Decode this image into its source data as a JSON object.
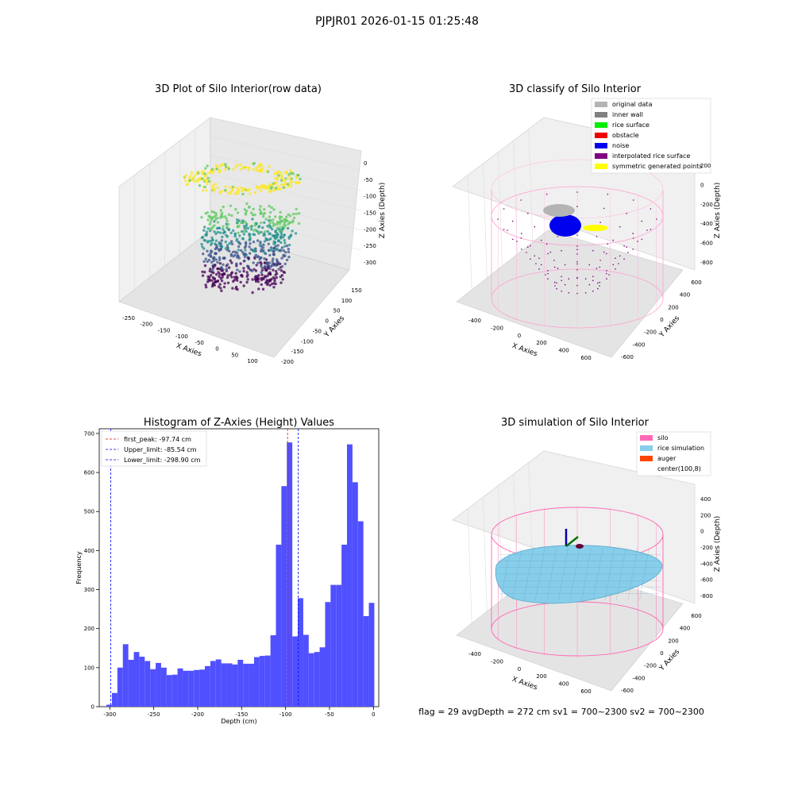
{
  "suptitle": "PJPJR01 2026-01-15 01:25:48",
  "panel_raw": {
    "title": "3D Plot of Silo Interior(row data)",
    "xlabel": "X Axies",
    "ylabel": "Y Axies",
    "zlabel": "Z Axies (Depth)",
    "xticks": [
      "-250",
      "-200",
      "-150",
      "-100",
      "-50",
      "0",
      "50",
      "100"
    ],
    "yticks": [
      "150",
      "100",
      "50",
      "0",
      "-50",
      "-100",
      "-150",
      "-200"
    ],
    "zticks": [
      "0",
      "-50",
      "-100",
      "-150",
      "-200",
      "-250",
      "-300"
    ],
    "colormap": [
      "#440154",
      "#3b528b",
      "#21918c",
      "#5ec962",
      "#fde725"
    ]
  },
  "panel_classify": {
    "title": "3D classify of Silo Interior",
    "xlabel": "X Axies",
    "ylabel": "Y Axies",
    "zlabel": "Z Axies (Depth)",
    "xticks": [
      "-400",
      "-200",
      "0",
      "200",
      "400",
      "600"
    ],
    "yticks": [
      "600",
      "400",
      "200",
      "0",
      "-200",
      "-400",
      "-600"
    ],
    "zticks": [
      "200",
      "0",
      "-200",
      "-400",
      "-600",
      "-800"
    ],
    "legend": [
      {
        "label": "original data",
        "color": "#b4b4b4"
      },
      {
        "label": "inner wall",
        "color": "#808080"
      },
      {
        "label": "rice surface",
        "color": "#00ee00"
      },
      {
        "label": "obstacle",
        "color": "#ee0000"
      },
      {
        "label": "noise",
        "color": "#0000ee"
      },
      {
        "label": "interpolated rice surface",
        "color": "#800080"
      },
      {
        "label": "symmetric generated points",
        "color": "#ffff00"
      }
    ]
  },
  "panel_sim": {
    "title": "3D simulation of Silo Interior",
    "xlabel": "X Axies",
    "ylabel": "Y Axies",
    "zlabel": "Z Axies (Depth)",
    "xticks": [
      "-400",
      "-200",
      "0",
      "200",
      "400",
      "600"
    ],
    "yticks": [
      "600",
      "400",
      "200",
      "0",
      "-200",
      "-400",
      "-600"
    ],
    "zticks": [
      "400",
      "200",
      "0",
      "-200",
      "-400",
      "-600",
      "-800"
    ],
    "legend": [
      {
        "label": "silo",
        "color": "#ff69b4"
      },
      {
        "label": "rice simulation",
        "color": "#87ceeb"
      },
      {
        "label": "auger",
        "color": "#ff4500"
      },
      {
        "label": "center(100,8)",
        "color": "#ffffff"
      }
    ],
    "status": "flag = 29  avgDepth = 272 cm  sv1 = 700~2300  sv2 = 700~2300"
  },
  "chart_data": {
    "type": "bar",
    "title": "Histogram of Z-Axies (Height) Values",
    "xlabel": "Depth (cm)",
    "ylabel": "Frequency",
    "xlim": [
      -312,
      6
    ],
    "ylim": [
      0,
      712
    ],
    "bar_color": "#5050ff",
    "xticks": [
      -300,
      -250,
      -200,
      -150,
      -100,
      -50,
      0
    ],
    "yticks": [
      0,
      100,
      200,
      300,
      400,
      500,
      600,
      700
    ],
    "bin_width": 6.22,
    "bins_start": -303.8,
    "values": [
      5,
      35,
      100,
      160,
      120,
      140,
      128,
      117,
      96,
      112,
      100,
      81,
      82,
      98,
      92,
      92,
      94,
      95,
      104,
      117,
      121,
      111,
      111,
      108,
      120,
      110,
      110,
      127,
      130,
      131,
      183,
      415,
      565,
      677,
      180,
      278,
      184,
      137,
      140,
      152,
      268,
      312,
      312,
      415,
      672,
      575,
      475,
      232,
      266
    ],
    "vlines": [
      {
        "label": "first_peak: -97.74 cm",
        "x": -97.74,
        "color": "#ff0000"
      },
      {
        "label": "Upper_limit: -85.54 cm",
        "x": -85.54,
        "color": "#0000ff"
      },
      {
        "label": "Lower_limit: -298.90 cm",
        "x": -298.9,
        "color": "#0000ff"
      }
    ]
  }
}
